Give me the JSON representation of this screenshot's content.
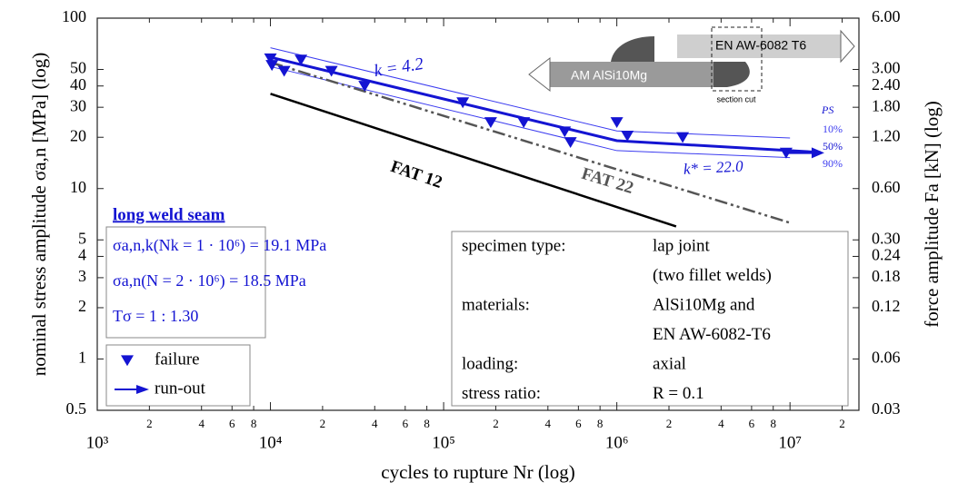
{
  "chart_data": {
    "type": "line",
    "xlabel": "cycles to rupture Nr (log)",
    "ylabel": "nominal stress amplitude σa,n [MPa] (log)",
    "y2label": "force amplitude Fa [kN] (log)",
    "log_x": true,
    "log_y": true,
    "grid": false,
    "xlim": [
      1000,
      25000000
    ],
    "ylim": [
      0.5,
      100
    ],
    "y2lim": [
      0.03,
      6
    ],
    "xticks": [
      {
        "value": 1000,
        "label": "10³"
      },
      {
        "value": 2000,
        "label": "2"
      },
      {
        "value": 4000,
        "label": "4"
      },
      {
        "value": 6000,
        "label": "6"
      },
      {
        "value": 8000,
        "label": "8"
      },
      {
        "value": 10000,
        "label": "10⁴"
      },
      {
        "value": 20000,
        "label": "2"
      },
      {
        "value": 40000,
        "label": "4"
      },
      {
        "value": 60000,
        "label": "6"
      },
      {
        "value": 80000,
        "label": "8"
      },
      {
        "value": 100000,
        "label": "10⁵"
      },
      {
        "value": 200000,
        "label": "2"
      },
      {
        "value": 400000,
        "label": "4"
      },
      {
        "value": 600000,
        "label": "6"
      },
      {
        "value": 800000,
        "label": "8"
      },
      {
        "value": 1000000,
        "label": "10⁶"
      },
      {
        "value": 2000000,
        "label": "2"
      },
      {
        "value": 4000000,
        "label": "4"
      },
      {
        "value": 6000000,
        "label": "6"
      },
      {
        "value": 8000000,
        "label": "8"
      },
      {
        "value": 10000000,
        "label": "10⁷"
      },
      {
        "value": 20000000,
        "label": "2"
      }
    ],
    "yticks": [
      0.5,
      1,
      2,
      3,
      4,
      5,
      10,
      20,
      30,
      40,
      50,
      100
    ],
    "y2ticks": [
      {
        "value": 6,
        "label": "6.00"
      },
      {
        "value": 3,
        "label": "3.00"
      },
      {
        "value": 2.4,
        "label": "2.40"
      },
      {
        "value": 1.8,
        "label": "1.80"
      },
      {
        "value": 1.2,
        "label": "1.20"
      },
      {
        "value": 0.6,
        "label": "0.60"
      },
      {
        "value": 0.3,
        "label": "0.30"
      },
      0.24,
      0.18,
      0.12,
      0.06,
      0.03
    ],
    "series": [
      {
        "name": "failure",
        "marker": "triangle-down",
        "color": "#1414d2",
        "x": [
          10000,
          10200,
          12000,
          15000,
          22500,
          35000,
          129000,
          187000,
          290000,
          500000,
          540000,
          1000000,
          1150000,
          2400000,
          9500000
        ],
        "values": [
          58,
          53,
          49,
          57,
          49,
          40,
          32,
          24.5,
          24.5,
          21.6,
          18.7,
          24.5,
          20.4,
          20,
          16.2
        ]
      },
      {
        "name": "run-out",
        "marker": "arrow",
        "color": "#1414d2",
        "x": [
          9500000
        ],
        "values": [
          16.2
        ]
      }
    ],
    "curves": [
      {
        "name": "10%",
        "color": "#3c3cf0",
        "width": 1,
        "style": "solid",
        "x": [
          10000,
          1000000,
          10000000
        ],
        "values": [
          67,
          21.8,
          19.8
        ]
      },
      {
        "name": "50%",
        "color": "#1414d2",
        "width": 3,
        "style": "solid",
        "x": [
          10000,
          1000000,
          15000000
        ],
        "values": [
          59,
          19.1,
          16.3
        ]
      },
      {
        "name": "90%",
        "color": "#3c3cf0",
        "width": 1,
        "style": "solid",
        "x": [
          10000,
          1000000,
          10000000
        ],
        "values": [
          52,
          16.7,
          15.2
        ]
      },
      {
        "name": "FAT 22",
        "color": "#555555",
        "width": 2.5,
        "style": "dashdotdot",
        "x": [
          10000,
          10000000
        ],
        "values": [
          55,
          6.3
        ]
      },
      {
        "name": "FAT 12",
        "color": "#000000",
        "width": 2.5,
        "style": "solid",
        "x": [
          10000,
          2200000
        ],
        "values": [
          36,
          6
        ]
      }
    ],
    "annotations": [
      "k = 4.2",
      "k* = 22.0",
      "PS"
    ],
    "weld_box": {
      "title": "long weld seam",
      "lines": [
        "σa,n,k(Nk = 1 · 10⁶) = 19.1 MPa",
        "σa,n(N = 2 · 10⁶) = 18.5 MPa",
        "Tσ = 1 : 1.30"
      ]
    },
    "specimen_table": [
      {
        "label": "specimen type:",
        "value": [
          "lap joint",
          "(two fillet welds)"
        ]
      },
      {
        "label": "materials:",
        "value": [
          "AlSi10Mg and",
          "EN AW-6082-T6"
        ]
      },
      {
        "label": "loading:",
        "value": [
          "axial"
        ]
      },
      {
        "label": "stress ratio:",
        "value": [
          "R = 0.1"
        ]
      }
    ],
    "inset": {
      "upper_part": "EN AW-6082 T6",
      "lower_part": "AM AlSi10Mg",
      "cut": "section cut"
    }
  }
}
